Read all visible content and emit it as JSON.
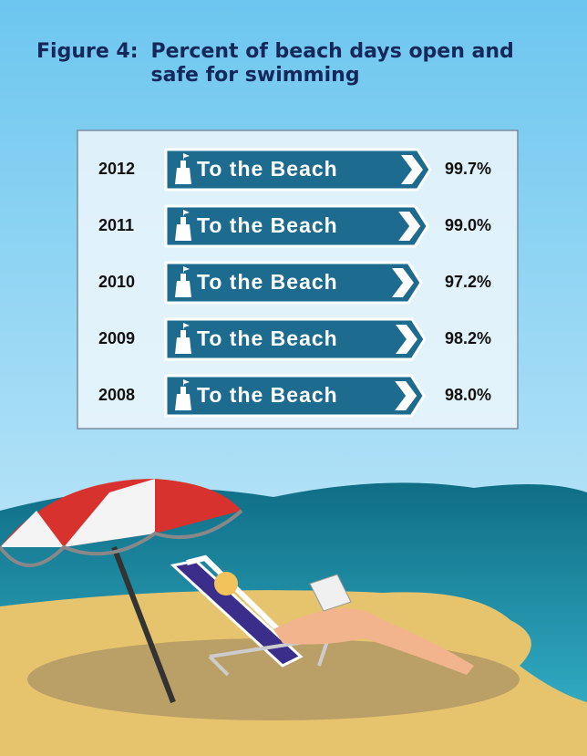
{
  "chart_data": {
    "type": "bar",
    "figure_label": "Figure 4:",
    "title": "Percent of beach days open and safe for swimming",
    "categories": [
      "2012",
      "2011",
      "2010",
      "2009",
      "2008"
    ],
    "values": [
      99.7,
      99.0,
      97.2,
      98.2,
      98.0
    ],
    "value_labels": [
      "99.7%",
      "99.0%",
      "97.2%",
      "98.2%",
      "98.0%"
    ],
    "sign_text": "To the Beach",
    "color": "#1d6b8e"
  }
}
